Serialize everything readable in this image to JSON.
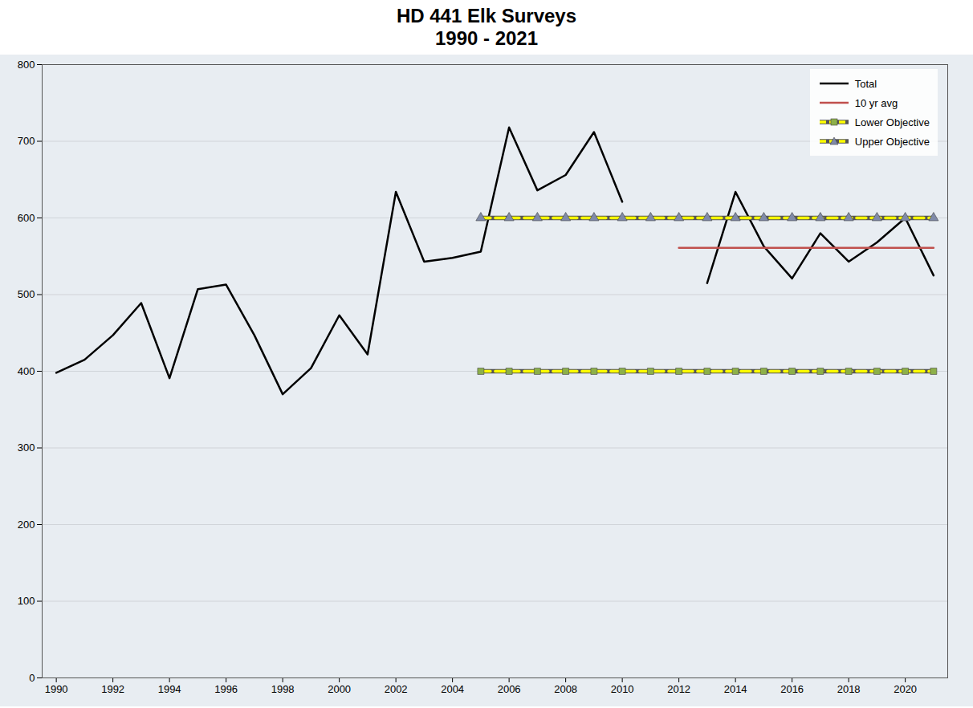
{
  "chart_data": {
    "type": "line",
    "title": "HD 441 Elk Surveys",
    "subtitle": "1990 - 2021",
    "x": [
      1990,
      1991,
      1992,
      1993,
      1994,
      1995,
      1996,
      1997,
      1998,
      1999,
      2000,
      2001,
      2002,
      2003,
      2004,
      2005,
      2006,
      2007,
      2008,
      2009,
      2010,
      2011,
      2012,
      2013,
      2014,
      2015,
      2016,
      2017,
      2018,
      2019,
      2020,
      2021
    ],
    "series": [
      {
        "name": "Total",
        "color": "#000000",
        "line_style": "solid",
        "values": [
          398,
          415,
          447,
          489,
          391,
          507,
          513,
          447,
          370,
          404,
          473,
          422,
          634,
          543,
          548,
          556,
          718,
          636,
          656,
          712,
          621,
          null,
          null,
          515,
          634,
          563,
          521,
          580,
          543,
          568,
          600,
          525
        ]
      },
      {
        "name": "10 yr avg",
        "color": "#c0504d",
        "line_style": "solid",
        "values": [
          null,
          null,
          null,
          null,
          null,
          null,
          null,
          null,
          null,
          null,
          null,
          null,
          null,
          null,
          null,
          null,
          null,
          null,
          null,
          null,
          null,
          null,
          561,
          561,
          561,
          561,
          561,
          561,
          561,
          561,
          561,
          561
        ]
      },
      {
        "name": "Lower Objective",
        "color": "#ffff00",
        "line_style": "dashed",
        "marker": "square",
        "values": [
          null,
          null,
          null,
          null,
          null,
          null,
          null,
          null,
          null,
          null,
          null,
          null,
          null,
          null,
          null,
          400,
          400,
          400,
          400,
          400,
          400,
          400,
          400,
          400,
          400,
          400,
          400,
          400,
          400,
          400,
          400,
          400
        ]
      },
      {
        "name": "Upper Objective",
        "color": "#ffff00",
        "line_style": "dashed",
        "marker": "triangle",
        "values": [
          null,
          null,
          null,
          null,
          null,
          null,
          null,
          null,
          null,
          null,
          null,
          null,
          null,
          null,
          null,
          600,
          600,
          600,
          600,
          600,
          600,
          600,
          600,
          600,
          600,
          600,
          600,
          600,
          600,
          600,
          600,
          600
        ]
      }
    ],
    "xlim": [
      1989.5,
      2021.5
    ],
    "xticks": [
      1990,
      1992,
      1994,
      1996,
      1998,
      2000,
      2002,
      2004,
      2006,
      2008,
      2010,
      2012,
      2014,
      2016,
      2018,
      2020
    ],
    "ylim": [
      0,
      800
    ],
    "yticks": [
      0,
      100,
      200,
      300,
      400,
      500,
      600,
      700,
      800
    ],
    "grid": true,
    "legend": "top-right"
  }
}
